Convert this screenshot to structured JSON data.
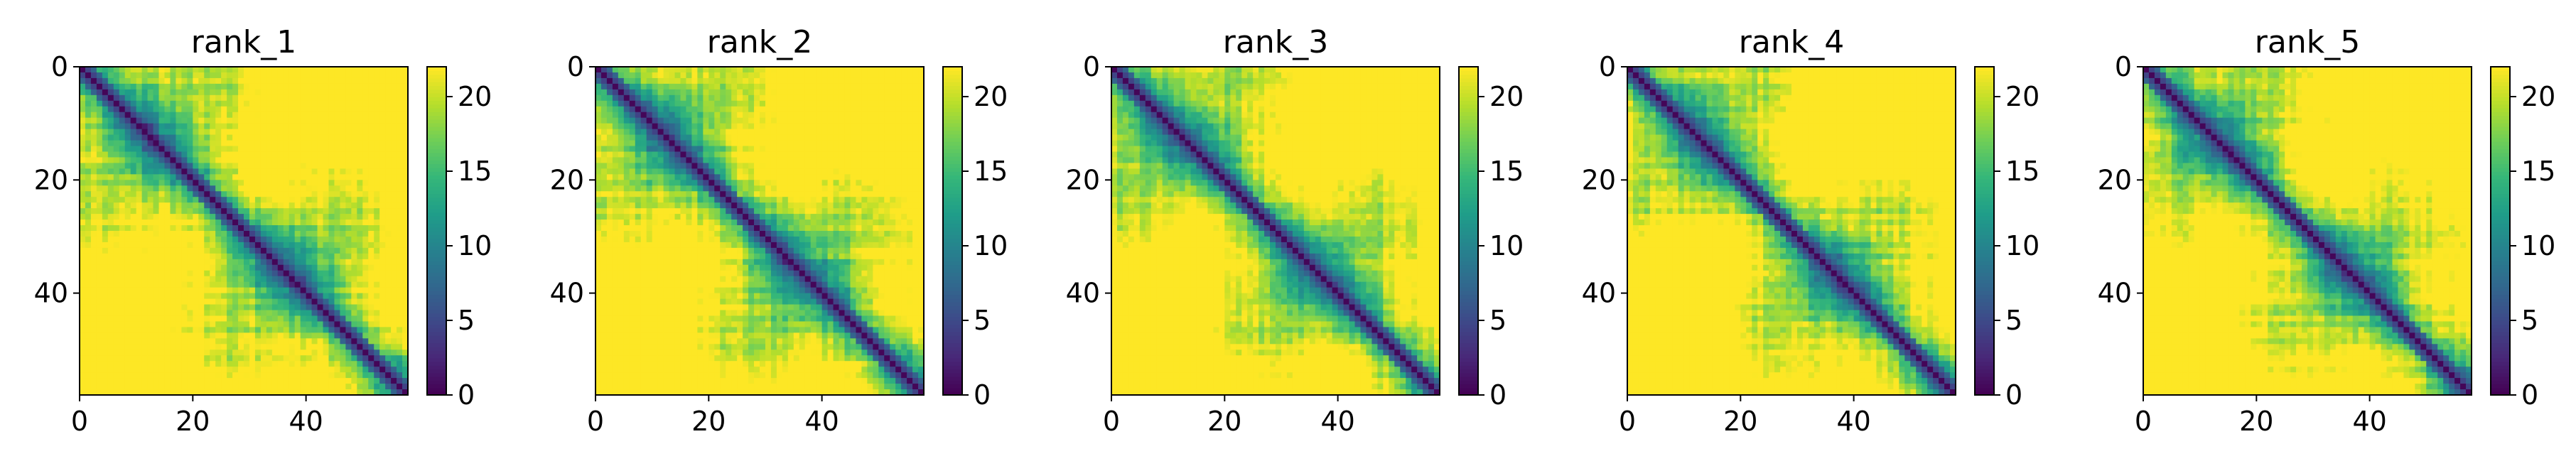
{
  "chart_data": [
    {
      "type": "heatmap",
      "title": "rank_1",
      "size": 58,
      "seed": 11,
      "xlim": [
        0,
        58
      ],
      "ylim": [
        58,
        0
      ],
      "xticks": [
        0,
        20,
        40
      ],
      "yticks": [
        0,
        20,
        40
      ],
      "colorbar": {
        "min": 0,
        "max": 22,
        "ticks": [
          0,
          5,
          10,
          15,
          20
        ]
      },
      "colormap": "viridis"
    },
    {
      "type": "heatmap",
      "title": "rank_2",
      "size": 58,
      "seed": 23,
      "xlim": [
        0,
        58
      ],
      "ylim": [
        58,
        0
      ],
      "xticks": [
        0,
        20,
        40
      ],
      "yticks": [
        0,
        20,
        40
      ],
      "colorbar": {
        "min": 0,
        "max": 22,
        "ticks": [
          0,
          5,
          10,
          15,
          20
        ]
      },
      "colormap": "viridis"
    },
    {
      "type": "heatmap",
      "title": "rank_3",
      "size": 58,
      "seed": 37,
      "xlim": [
        0,
        58
      ],
      "ylim": [
        58,
        0
      ],
      "xticks": [
        0,
        20,
        40
      ],
      "yticks": [
        0,
        20,
        40
      ],
      "colorbar": {
        "min": 0,
        "max": 22,
        "ticks": [
          0,
          5,
          10,
          15,
          20
        ]
      },
      "colormap": "viridis"
    },
    {
      "type": "heatmap",
      "title": "rank_4",
      "size": 58,
      "seed": 41,
      "xlim": [
        0,
        58
      ],
      "ylim": [
        58,
        0
      ],
      "xticks": [
        0,
        20,
        40
      ],
      "yticks": [
        0,
        20,
        40
      ],
      "colorbar": {
        "min": 0,
        "max": 22,
        "ticks": [
          0,
          5,
          10,
          15,
          20
        ]
      },
      "colormap": "viridis"
    },
    {
      "type": "heatmap",
      "title": "rank_5",
      "size": 58,
      "seed": 59,
      "xlim": [
        0,
        58
      ],
      "ylim": [
        58,
        0
      ],
      "xticks": [
        0,
        20,
        40
      ],
      "yticks": [
        0,
        20,
        40
      ],
      "colorbar": {
        "min": 0,
        "max": 22,
        "ticks": [
          0,
          5,
          10,
          15,
          20
        ]
      },
      "colormap": "viridis"
    }
  ]
}
